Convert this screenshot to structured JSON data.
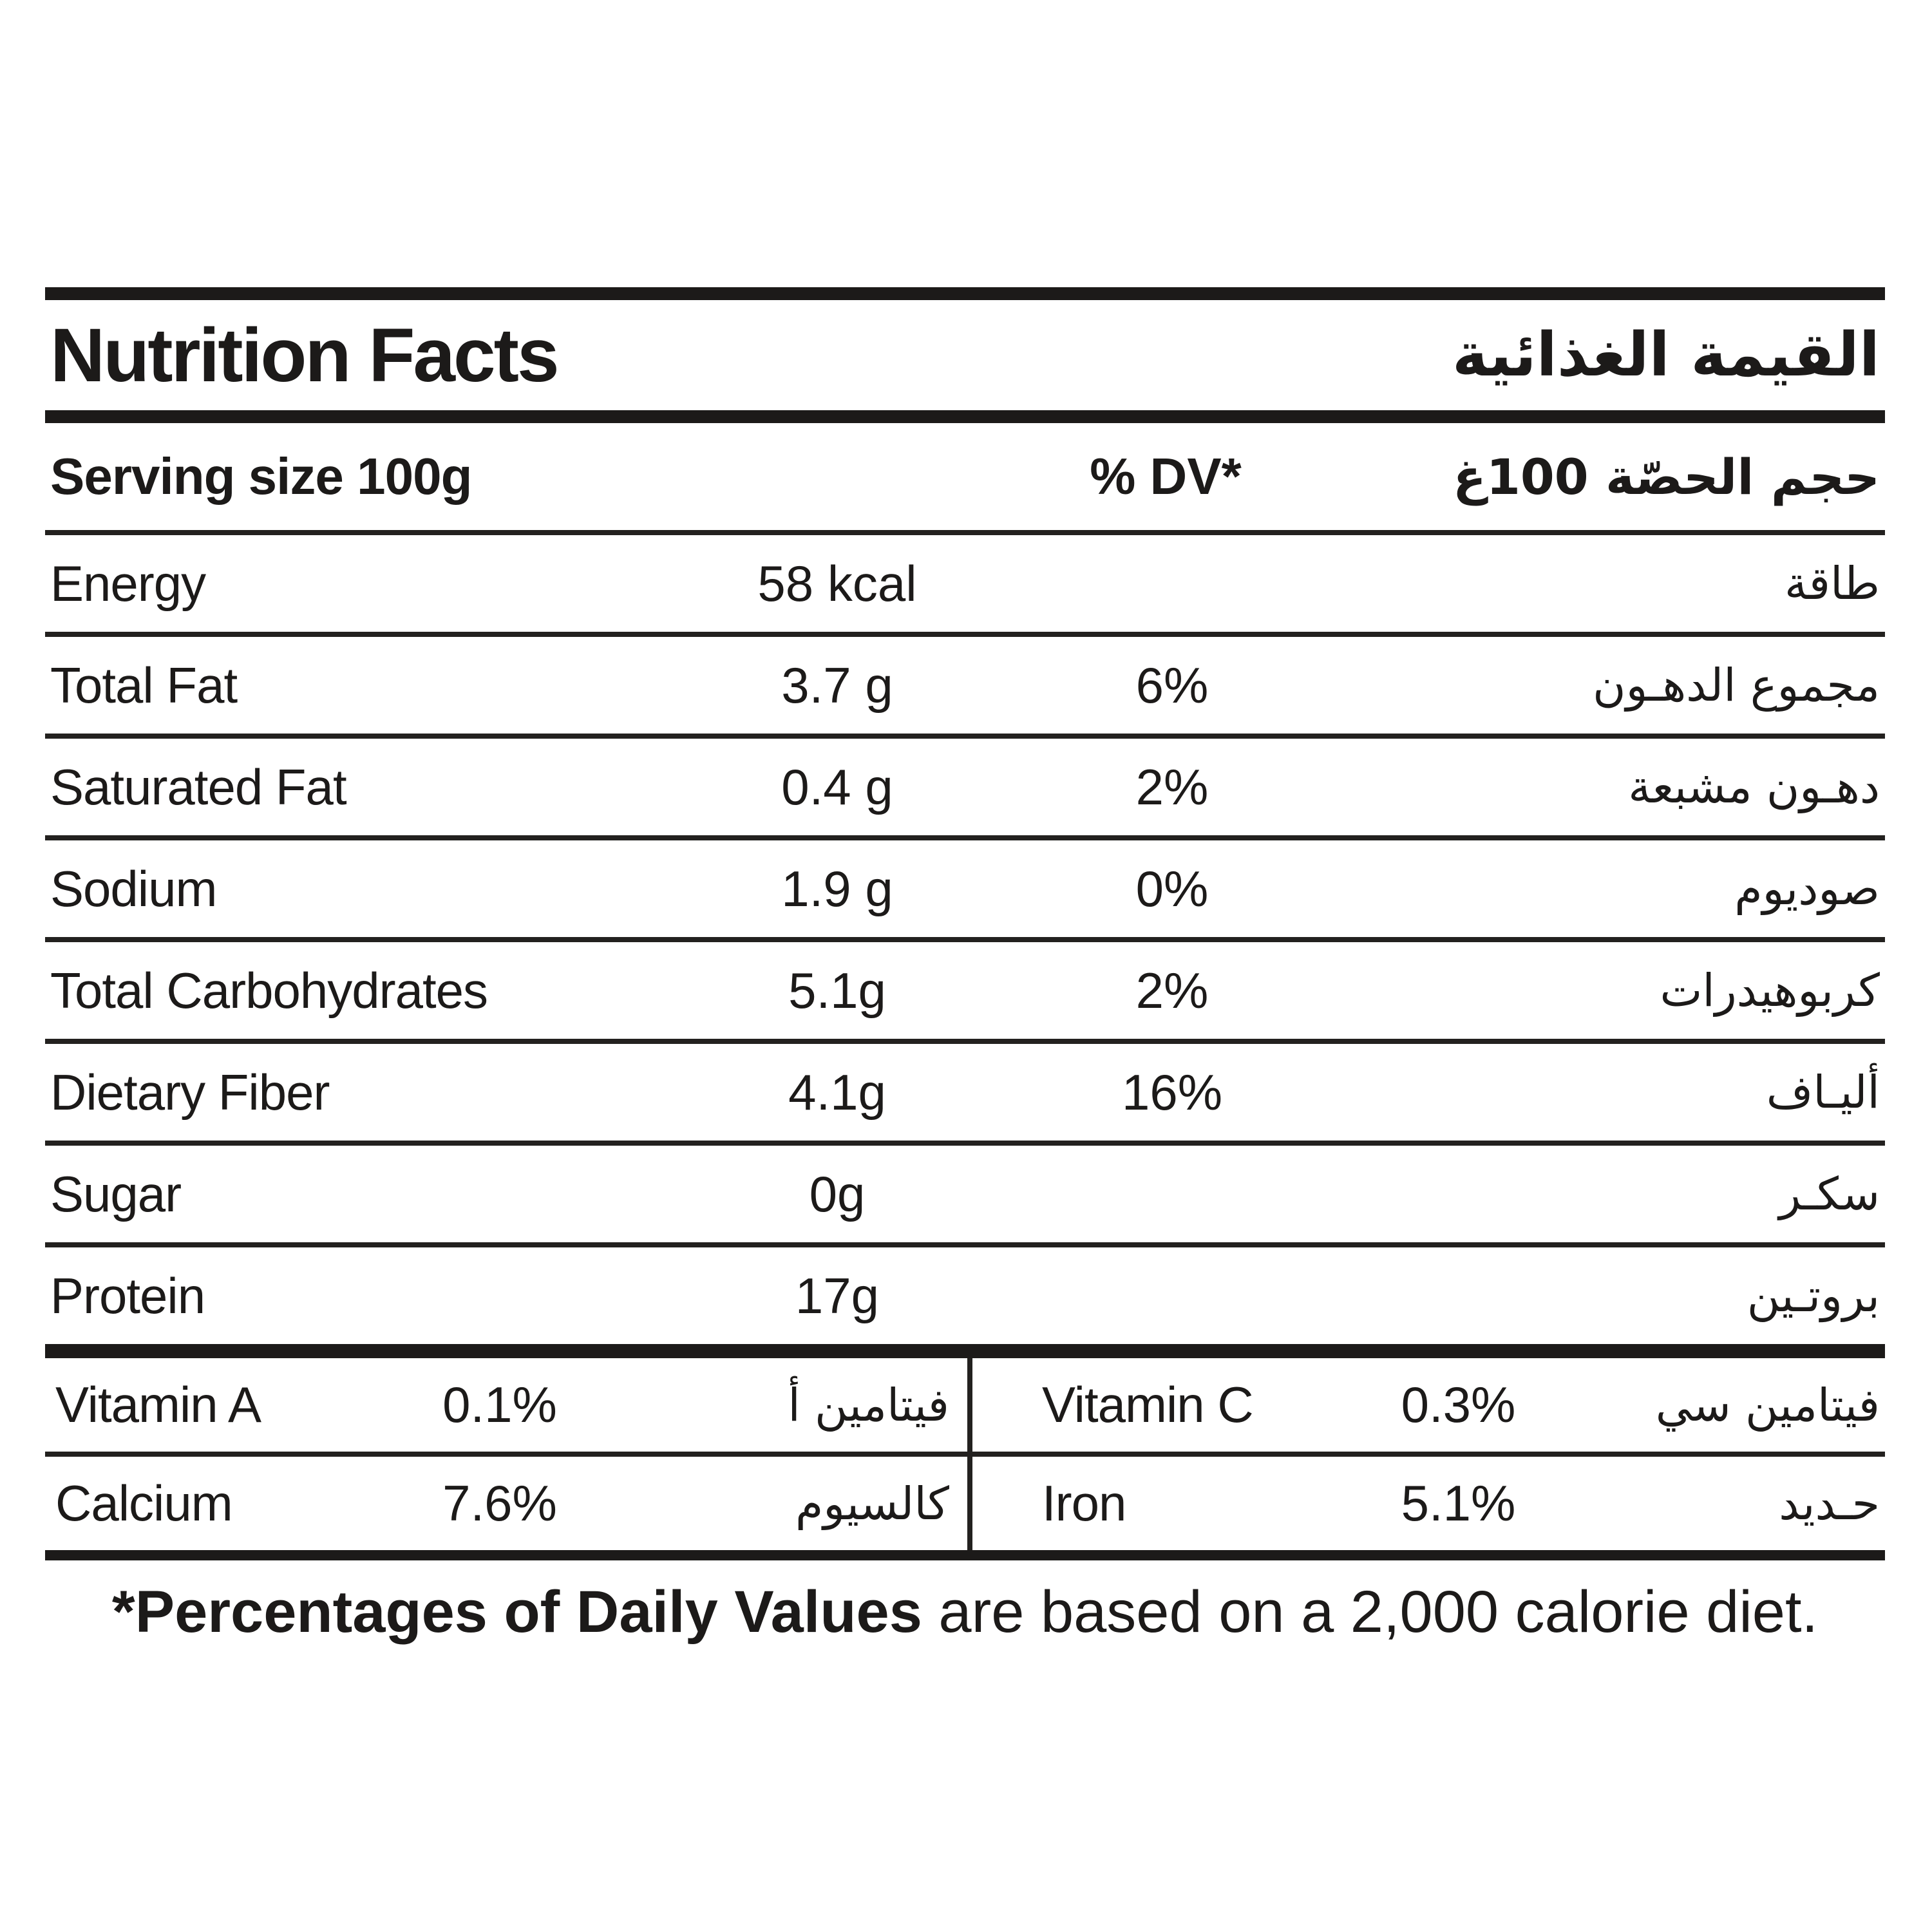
{
  "colors": {
    "ink": "#1c1a19",
    "background": "#ffffff"
  },
  "header": {
    "title_en": "Nutrition Facts",
    "title_ar": "القيمة الغذائية"
  },
  "serving": {
    "label_en": "Serving size 100g",
    "dv_header": "% DV*",
    "label_ar": "حجم الحصّة 100غ"
  },
  "rows": [
    {
      "en": "Energy",
      "value": "58 kcal",
      "dv": "",
      "ar": "طاقة"
    },
    {
      "en": "Total Fat",
      "value": "3.7 g",
      "dv": "6%",
      "ar": "مجموع الدهـون"
    },
    {
      "en": "Saturated Fat",
      "value": "0.4 g",
      "dv": "2%",
      "ar": "دهـون مشبعة"
    },
    {
      "en": "Sodium",
      "value": "1.9 g",
      "dv": "0%",
      "ar": "صوديوم"
    },
    {
      "en": "Total Carbohydrates",
      "value": "5.1g",
      "dv": "2%",
      "ar": "كربوهيدرات"
    },
    {
      "en": "Dietary Fiber",
      "value": "4.1g",
      "dv": "16%",
      "ar": "أليـاف"
    },
    {
      "en": "Sugar",
      "value": "0g",
      "dv": "",
      "ar": "سكـر"
    },
    {
      "en": "Protein",
      "value": "17g",
      "dv": "",
      "ar": "بروتـين"
    }
  ],
  "micronutrients": {
    "left": [
      {
        "en": "Vitamin A",
        "value": "0.1%",
        "ar": "فيتامين أ"
      },
      {
        "en": "Calcium",
        "value": "7.6%",
        "ar": "كالسيوم"
      }
    ],
    "right": [
      {
        "en": "Vitamin C",
        "value": "0.3%",
        "ar": "فيتامين سي"
      },
      {
        "en": "Iron",
        "value": "5.1%",
        "ar": "حـديد"
      }
    ]
  },
  "footnote": {
    "bold": "*Percentages of Daily Values",
    "rest": " are based on a 2,000 calorie diet."
  }
}
